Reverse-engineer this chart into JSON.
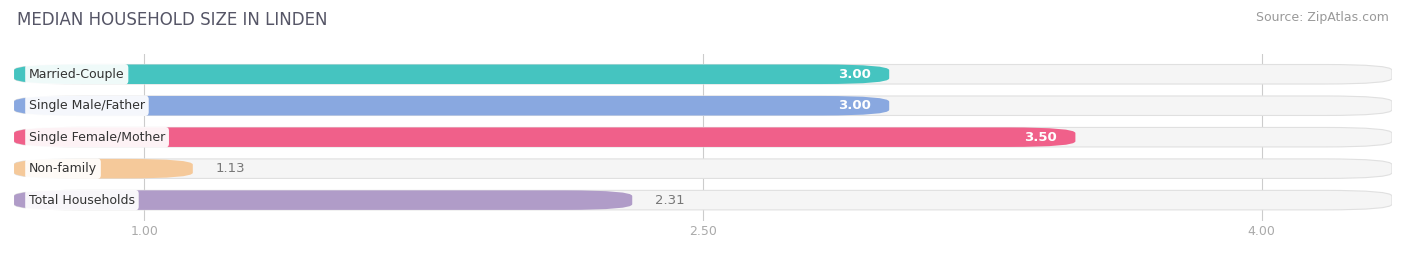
{
  "title": "MEDIAN HOUSEHOLD SIZE IN LINDEN",
  "source": "Source: ZipAtlas.com",
  "categories": [
    "Married-Couple",
    "Single Male/Father",
    "Single Female/Mother",
    "Non-family",
    "Total Households"
  ],
  "values": [
    3.0,
    3.0,
    3.5,
    1.13,
    2.31
  ],
  "bar_colors": [
    "#45c4c0",
    "#89a8e0",
    "#f0608a",
    "#f5c99a",
    "#b09cc8"
  ],
  "label_colors": [
    "white",
    "white",
    "white",
    "black",
    "black"
  ],
  "xmin": 0.65,
  "xlim": [
    0.65,
    4.35
  ],
  "xticks": [
    1.0,
    2.5,
    4.0
  ],
  "xtick_labels": [
    "1.00",
    "2.50",
    "4.00"
  ],
  "bar_height": 0.62,
  "title_fontsize": 12,
  "source_fontsize": 9,
  "label_fontsize": 9.5,
  "tick_fontsize": 9,
  "category_fontsize": 9,
  "background_color": "#ffffff",
  "bar_background_color": "#f5f5f5",
  "bar_bg_edge_color": "#e0e0e0"
}
